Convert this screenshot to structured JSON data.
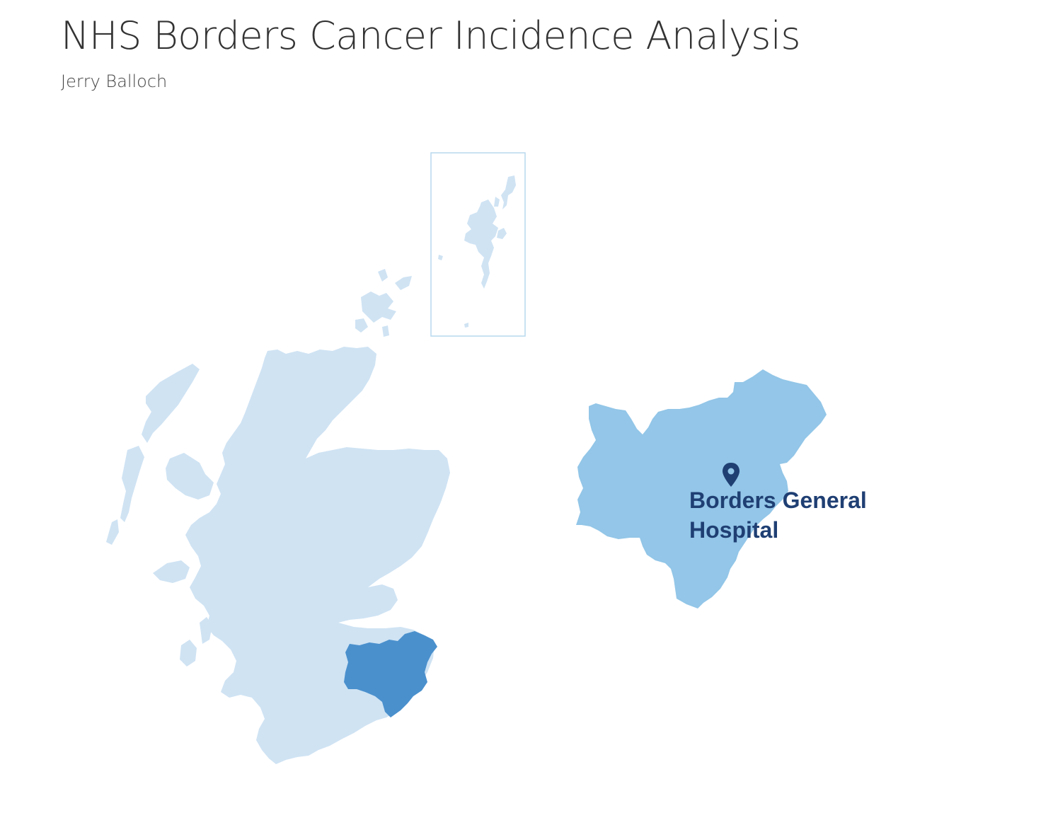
{
  "page": {
    "title": "NHS Borders Cancer Incidence Analysis",
    "author": "Jerry Balloch"
  },
  "map": {
    "icons": {
      "scotland_map": "scotland-map-icon",
      "shetland_inset": "shetland-inset-icon",
      "borders_highlight": "borders-region-highlight-icon",
      "borders_detail": "borders-region-detail-icon",
      "location_pin": "map-pin-icon"
    },
    "hospital_label_line1": "Borders General",
    "hospital_label_line2": "Hospital",
    "colors": {
      "scotland_fill": "#cfe3f3",
      "borders_highlight_fill": "#4a90cd",
      "borders_detail_fill": "#93c6e8",
      "label_color": "#1f3f73",
      "inset_border": "#b9d8ee"
    }
  }
}
